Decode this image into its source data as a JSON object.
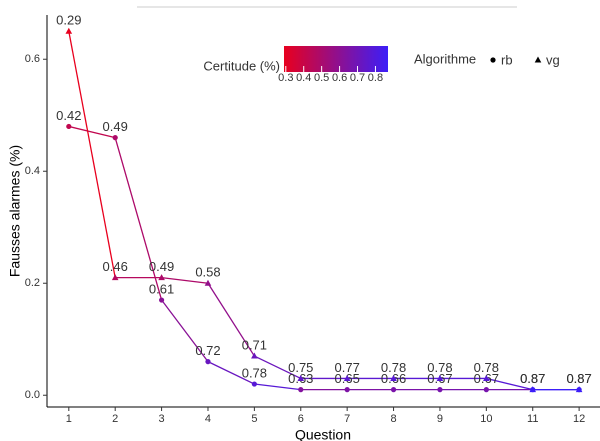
{
  "chart_data": {
    "type": "line",
    "xlabel": "Question",
    "ylabel": "Fausses alarmes (%)",
    "x": [
      1,
      2,
      3,
      4,
      5,
      6,
      7,
      8,
      9,
      10,
      11,
      12
    ],
    "xlim": [
      0.53,
      12.45
    ],
    "xticks": [
      1,
      2,
      3,
      4,
      5,
      6,
      7,
      8,
      9,
      10,
      11,
      12
    ],
    "ylim": [
      -0.021,
      0.679
    ],
    "yticks": [
      {
        "value": 0,
        "label": "0.0"
      },
      {
        "value": 0.2,
        "label": "0.2"
      },
      {
        "value": 0.4,
        "label": "0.4"
      },
      {
        "value": 0.6,
        "label": "0.6"
      }
    ],
    "color_legend": {
      "title": "Certitude (%)",
      "colors": [
        "#e8001e",
        "#3c1ef8"
      ],
      "limits": [
        0.29,
        0.87
      ],
      "ticks": [
        0.3,
        0.4,
        0.5,
        0.6,
        0.7,
        0.8
      ]
    },
    "shape_legend": {
      "title": "Algorithme"
    },
    "series": [
      {
        "name": "rb",
        "marker": "circle",
        "values": [
          0.48,
          0.46,
          0.17,
          0.06,
          0.02,
          0.01,
          0.01,
          0.01,
          0.01,
          0.01,
          0.01,
          0.01
        ],
        "certitude": [
          0.42,
          0.49,
          0.61,
          0.72,
          0.78,
          0.63,
          0.65,
          0.66,
          0.67,
          0.67,
          0.87,
          0.87
        ]
      },
      {
        "name": "vg",
        "marker": "triangle",
        "values": [
          0.65,
          0.21,
          0.21,
          0.2,
          0.07,
          0.03,
          0.03,
          0.03,
          0.03,
          0.03,
          0.01,
          0.01
        ],
        "certitude": [
          0.29,
          0.46,
          0.49,
          0.58,
          0.71,
          0.75,
          0.77,
          0.78,
          0.78,
          0.78,
          0.87,
          0.87
        ]
      }
    ]
  }
}
